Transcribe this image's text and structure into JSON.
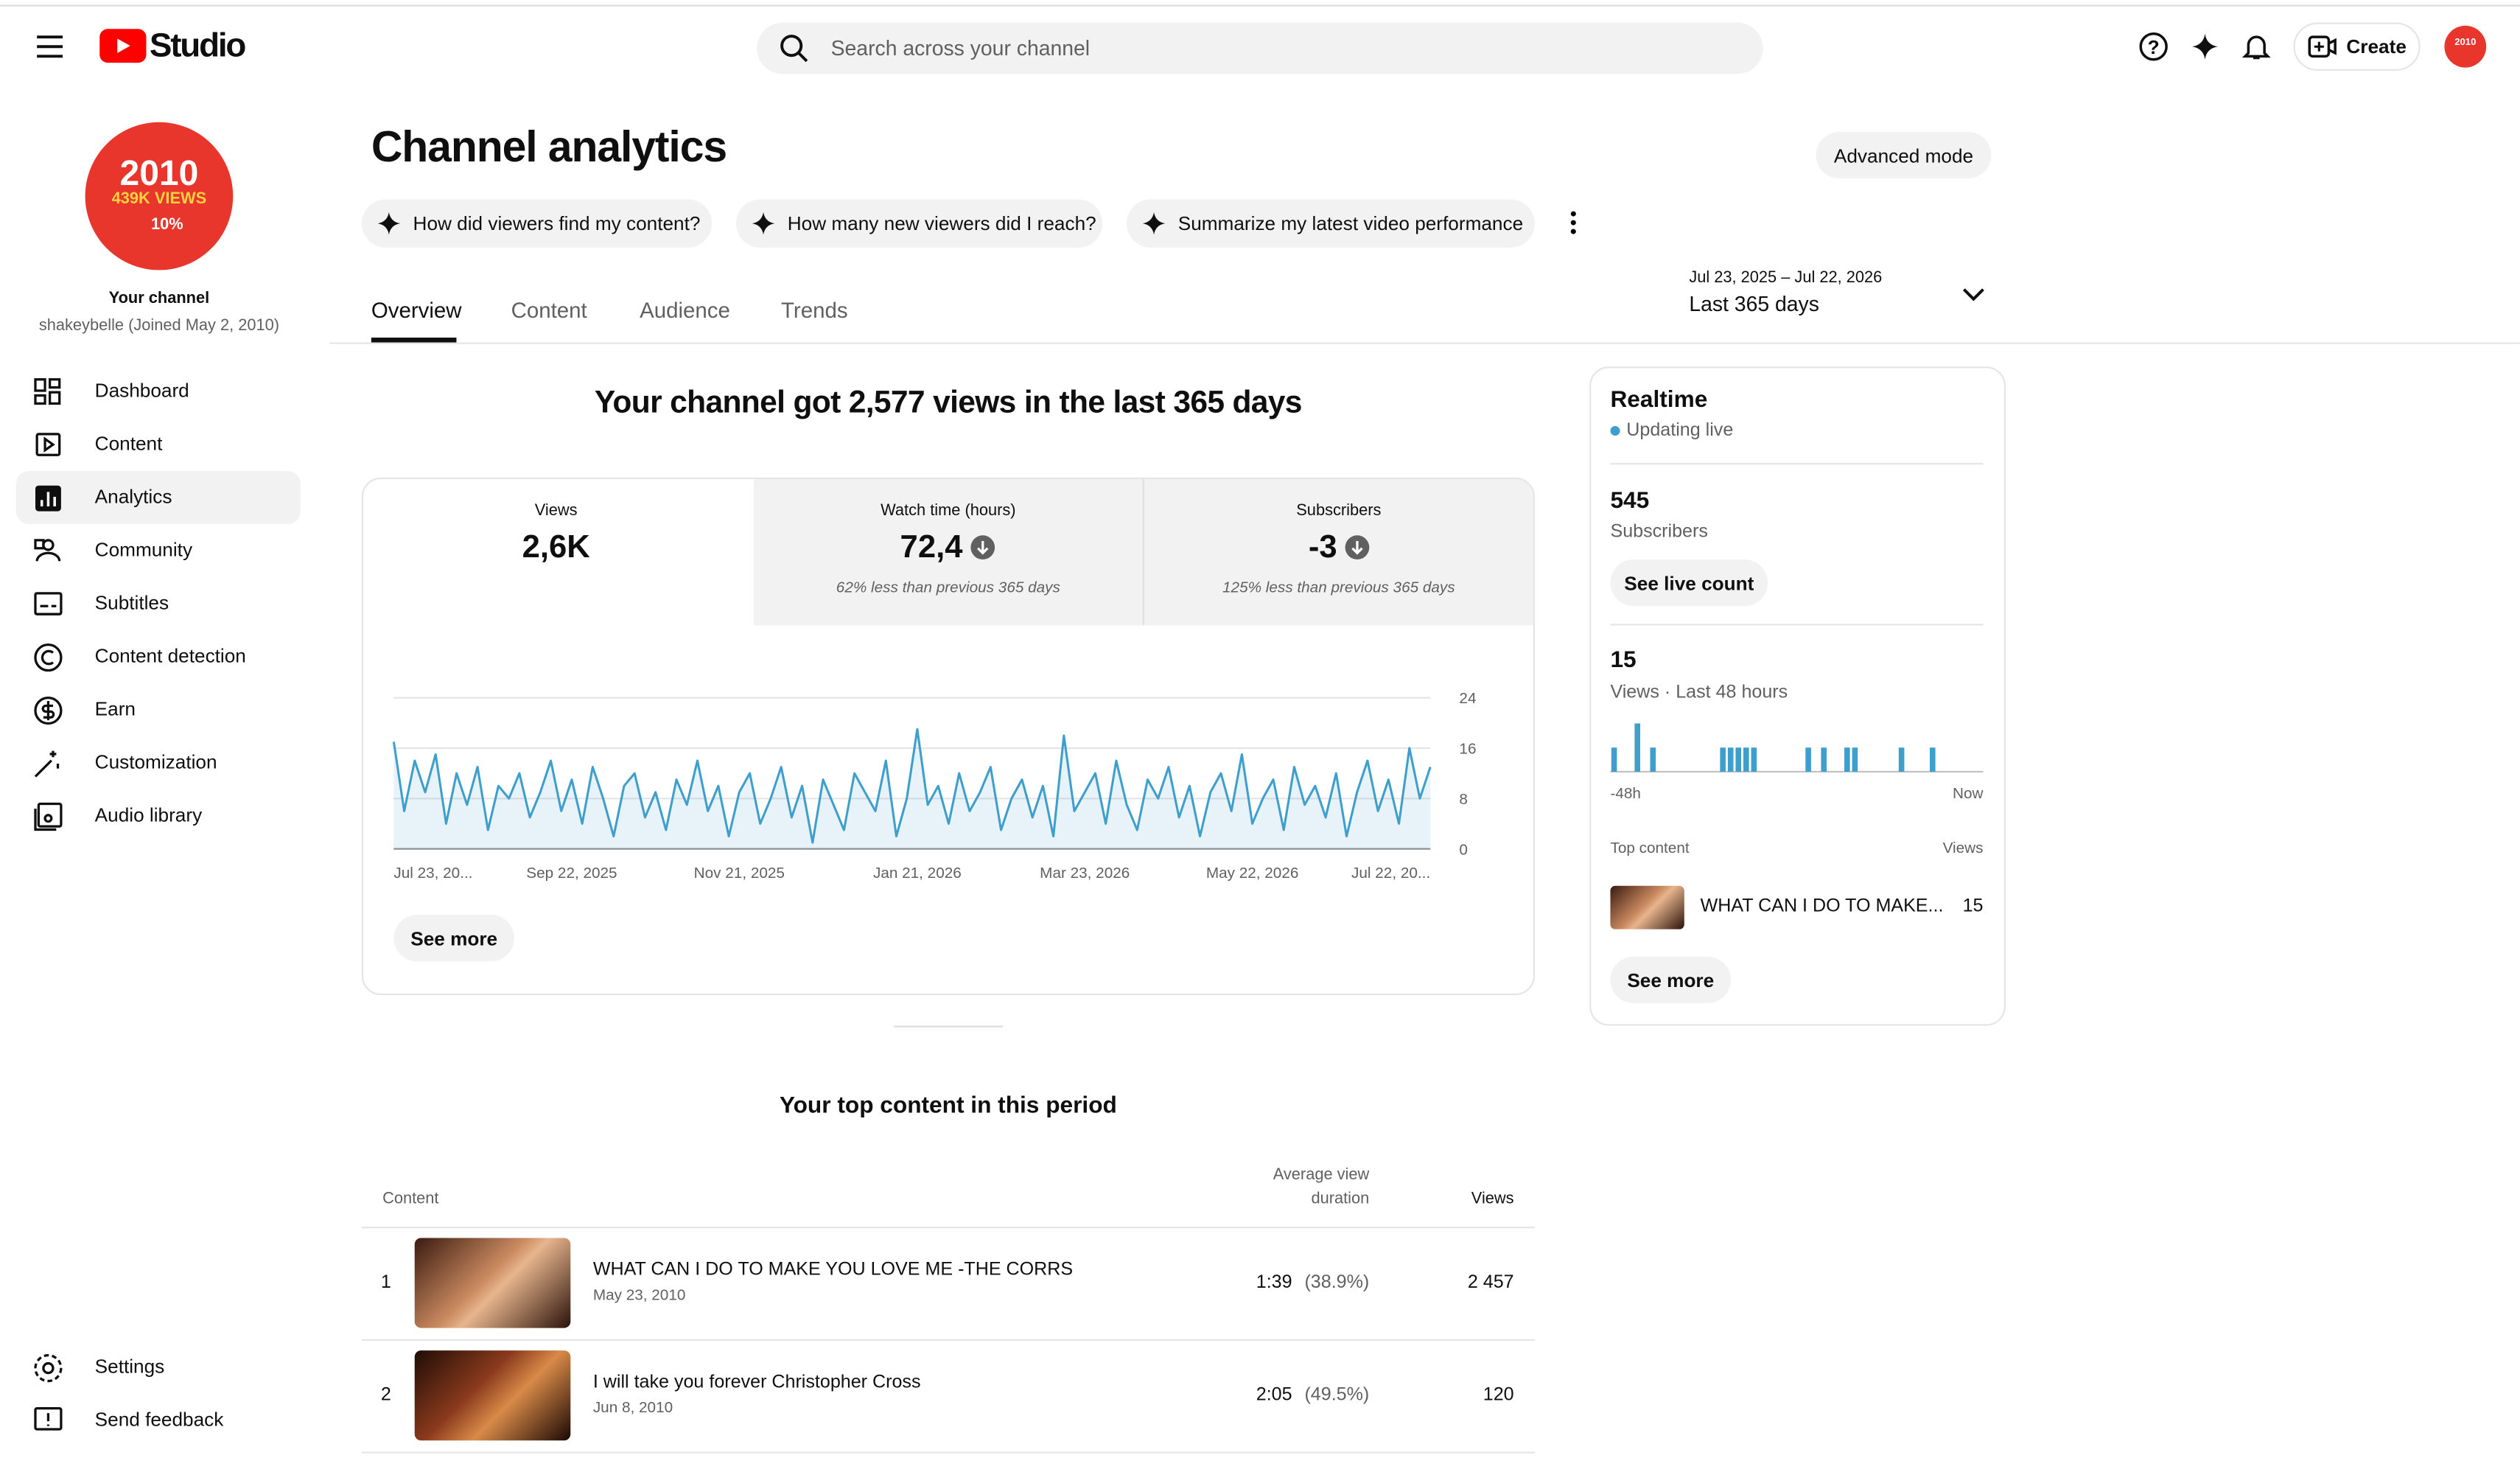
{
  "header": {
    "logo": "Studio",
    "search_placeholder": "Search across your channel",
    "create": "Create"
  },
  "sidebar": {
    "avatar_lines": [
      "2010",
      "439K VIEWS",
      "10%"
    ],
    "channel_label": "Your channel",
    "channel_sub": "shakeybelle (Joined May 2, 2010)",
    "nav": [
      "Dashboard",
      "Content",
      "Analytics",
      "Community",
      "Subtitles",
      "Content detection",
      "Earn",
      "Customization",
      "Audio library"
    ],
    "footer_nav": [
      "Settings",
      "Send feedback"
    ]
  },
  "page": {
    "title": "Channel analytics",
    "advanced_mode": "Advanced mode",
    "prompts": [
      "How did viewers find my content?",
      "How many new viewers did I reach?",
      "Summarize my latest video performance"
    ],
    "tabs": [
      "Overview",
      "Content",
      "Audience",
      "Trends"
    ],
    "date_range": "Jul 23, 2025 – Jul 22, 2026",
    "period": "Last 365 days",
    "headline": "Your channel got 2,577 views in the last 365 days"
  },
  "metrics": [
    {
      "label": "Views",
      "value": "2,6K"
    },
    {
      "label": "Watch time (hours)",
      "value": "72,4",
      "note": "62% less than previous 365 days"
    },
    {
      "label": "Subscribers",
      "value": "-3",
      "note": "125% less than previous 365 days"
    }
  ],
  "chart_data": {
    "type": "line",
    "color": "#3f9fcc",
    "grid": true,
    "ylim": [
      0,
      24
    ],
    "yticks": [
      0,
      8,
      16,
      24
    ],
    "categories": [
      "Jul 23, 20...",
      null,
      null,
      null,
      null,
      null,
      null,
      null,
      null,
      null,
      null,
      null,
      null,
      null,
      null,
      null,
      null,
      "Sep 22, 2025",
      null,
      null,
      null,
      null,
      null,
      null,
      null,
      null,
      null,
      null,
      null,
      null,
      null,
      null,
      null,
      "Nov 21, 2025",
      null,
      null,
      null,
      null,
      null,
      null,
      null,
      null,
      null,
      null,
      null,
      null,
      null,
      null,
      null,
      null,
      "Jan 21, 2026",
      null,
      null,
      null,
      null,
      null,
      null,
      null,
      null,
      null,
      null,
      null,
      null,
      null,
      null,
      null,
      "Mar 23, 2026",
      null,
      null,
      null,
      null,
      null,
      null,
      null,
      null,
      null,
      null,
      null,
      null,
      null,
      null,
      null,
      "May 22, 2026",
      null,
      null,
      null,
      null,
      null,
      null,
      null,
      null,
      null,
      null,
      null,
      null,
      null,
      null,
      null,
      null,
      "Jul 22, 20..."
    ],
    "values": [
      17,
      6,
      14,
      9,
      15,
      4,
      12,
      7,
      13,
      3,
      10,
      8,
      12,
      5,
      9,
      14,
      6,
      11,
      4,
      13,
      8,
      2,
      10,
      12,
      5,
      9,
      3,
      11,
      7,
      14,
      6,
      10,
      2,
      9,
      12,
      4,
      8,
      13,
      5,
      10,
      1,
      11,
      7,
      3,
      12,
      9,
      6,
      14,
      2,
      8,
      19,
      7,
      10,
      4,
      12,
      6,
      9,
      13,
      3,
      8,
      11,
      5,
      10,
      2,
      18,
      6,
      9,
      12,
      4,
      14,
      7,
      3,
      11,
      8,
      13,
      5,
      10,
      2,
      9,
      12,
      6,
      15,
      4,
      8,
      11,
      3,
      13,
      7,
      10,
      5,
      12,
      2,
      9,
      14,
      6,
      11,
      4,
      16,
      8,
      13
    ]
  },
  "see_more": "See more",
  "realtime": {
    "title": "Realtime",
    "status": "Updating live",
    "subscribers": "545",
    "subscribers_label": "Subscribers",
    "live_count": "See live count",
    "views": "15",
    "views_label": "Views · Last 48 hours",
    "chart": {
      "type": "bar",
      "color": "#3f9fcc",
      "values": [
        1,
        0,
        0,
        2,
        0,
        1,
        0,
        0,
        0,
        0,
        0,
        0,
        0,
        0,
        1,
        1,
        1,
        1,
        1,
        0,
        0,
        0,
        0,
        0,
        0,
        1,
        0,
        1,
        0,
        0,
        1,
        1,
        0,
        0,
        0,
        0,
        0,
        1,
        0,
        0,
        0,
        1,
        0,
        0,
        0,
        0,
        0,
        0
      ],
      "axis_labels": [
        "-48h",
        "Now"
      ]
    },
    "top_content_label": "Top content",
    "views_col": "Views",
    "top_item": {
      "title": "WHAT CAN I DO TO MAKE...",
      "views": "15"
    },
    "see_more": "See more"
  },
  "table": {
    "heading": "Your top content in this period",
    "columns": [
      "Content",
      "Average view",
      "duration",
      "Views"
    ],
    "rows": [
      [
        "1",
        "WHAT CAN I DO TO MAKE YOU LOVE ME -THE CORRS",
        "May 23, 2010",
        "1:39",
        "(38.9%)",
        "2 457"
      ],
      [
        "2",
        "I will take you forever Christopher Cross",
        "Jun 8, 2010",
        "2:05",
        "(49.5%)",
        "120"
      ]
    ]
  }
}
